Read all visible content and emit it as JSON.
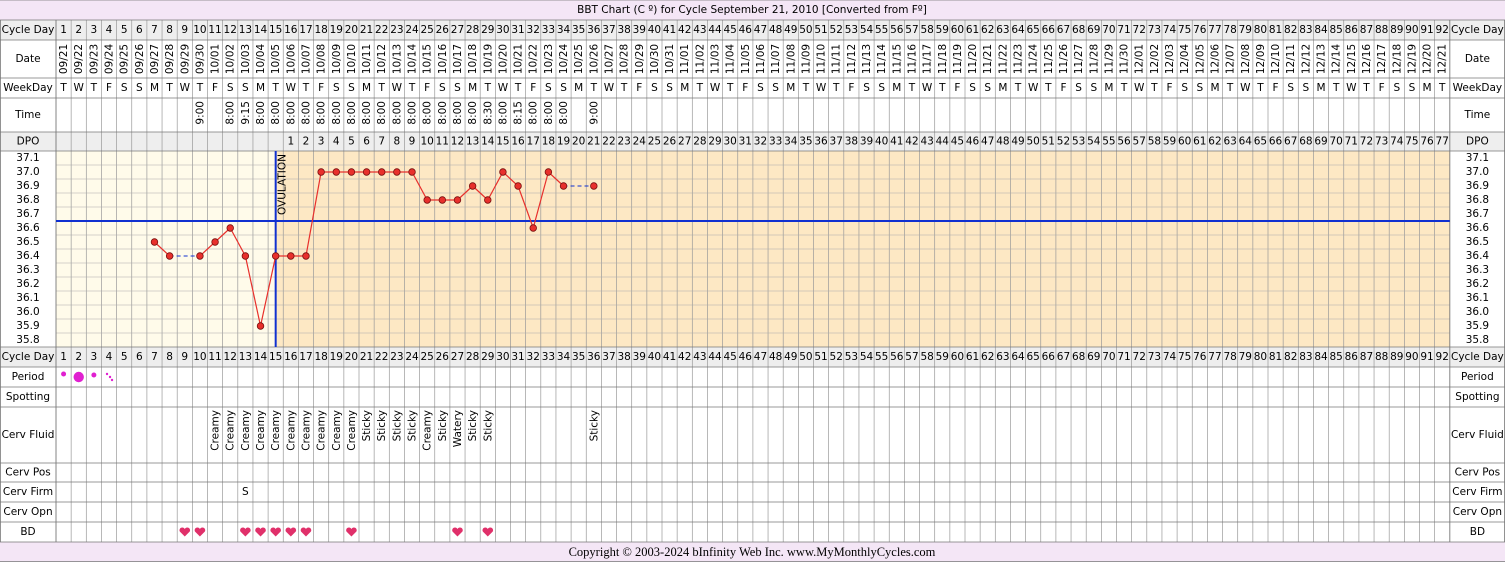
{
  "title": "BBT Chart (C º) for Cycle September 21, 2010  [Converted from Fº]",
  "footer": "Copyright © 2003-2024 bInfinity Web Inc.     www.MyMonthlyCycles.com",
  "row_labels": {
    "cycle_day": "Cycle Day",
    "date": "Date",
    "weekday": "WeekDay",
    "time": "Time",
    "dpo": "DPO",
    "period": "Period",
    "spotting": "Spotting",
    "cerv_fluid": "Cerv Fluid",
    "cerv_pos": "Cerv Pos",
    "cerv_firm": "Cerv Firm",
    "cerv_opn": "Cerv Opn",
    "bd": "BD"
  },
  "cycle_days": [
    1,
    2,
    3,
    4,
    5,
    6,
    7,
    8,
    9,
    10,
    11,
    12,
    13,
    14,
    15,
    16,
    17,
    18,
    19,
    20,
    21,
    22,
    23,
    24,
    25,
    26,
    27,
    28,
    29,
    30,
    31,
    32,
    33,
    34,
    35,
    36,
    37,
    38,
    39,
    40,
    41,
    42,
    43,
    44,
    45,
    46,
    47,
    48,
    49,
    50,
    51,
    52,
    53,
    54,
    55,
    56,
    57,
    58,
    59,
    60,
    61,
    62,
    63,
    64,
    65,
    66,
    67,
    68,
    69,
    70,
    71,
    72,
    73,
    74,
    75,
    76,
    77,
    78,
    79,
    80,
    81,
    82,
    83,
    84,
    85,
    86,
    87,
    88,
    89,
    90,
    91,
    92
  ],
  "dates": [
    "09/21",
    "09/22",
    "09/23",
    "09/24",
    "09/25",
    "09/26",
    "09/27",
    "09/28",
    "09/29",
    "09/30",
    "10/01",
    "10/02",
    "10/03",
    "10/04",
    "10/05",
    "10/06",
    "10/07",
    "10/08",
    "10/09",
    "10/10",
    "10/11",
    "10/12",
    "10/13",
    "10/14",
    "10/15",
    "10/16",
    "10/17",
    "10/18",
    "10/19",
    "10/20",
    "10/21",
    "10/22",
    "10/23",
    "10/24",
    "10/25",
    "10/26",
    "10/27",
    "10/28",
    "10/29",
    "10/30",
    "10/31",
    "11/01",
    "11/02",
    "11/03",
    "11/04",
    "11/05",
    "11/06",
    "11/07",
    "11/08",
    "11/09",
    "11/10",
    "11/11",
    "11/12",
    "11/13",
    "11/14",
    "11/15",
    "11/16",
    "11/17",
    "11/18",
    "11/19",
    "11/20",
    "11/21",
    "11/22",
    "11/23",
    "11/24",
    "11/25",
    "11/26",
    "11/27",
    "11/28",
    "11/29",
    "11/30",
    "12/01",
    "12/02",
    "12/03",
    "12/04",
    "12/05",
    "12/06",
    "12/07",
    "12/08",
    "12/09",
    "12/10",
    "12/11",
    "12/12",
    "12/13",
    "12/14",
    "12/15",
    "12/16",
    "12/17",
    "12/18",
    "12/19",
    "12/20",
    "12/21"
  ],
  "weekdays": [
    "T",
    "W",
    "T",
    "F",
    "S",
    "S",
    "M",
    "T",
    "W",
    "T",
    "F",
    "S",
    "S",
    "M",
    "T",
    "W",
    "T",
    "F",
    "S",
    "S",
    "M",
    "T",
    "W",
    "T",
    "F",
    "S",
    "S",
    "M",
    "T",
    "W",
    "T",
    "F",
    "S",
    "S",
    "M",
    "T",
    "W",
    "T",
    "F",
    "S",
    "S",
    "M",
    "T",
    "W",
    "T",
    "F",
    "S",
    "S",
    "M",
    "T",
    "W",
    "T",
    "F",
    "S",
    "S",
    "M",
    "T",
    "W",
    "T",
    "F",
    "S",
    "S",
    "M",
    "T",
    "W",
    "T",
    "F",
    "S",
    "S",
    "M",
    "T",
    "W",
    "T",
    "F",
    "S",
    "S",
    "M",
    "T",
    "W",
    "T",
    "F",
    "S",
    "S",
    "M",
    "T",
    "W",
    "T",
    "F",
    "S",
    "S",
    "M",
    "T"
  ],
  "times": [
    {
      "day": 10,
      "text": "9:00"
    },
    {
      "day": 12,
      "text": "8:00"
    },
    {
      "day": 13,
      "text": "9:15"
    },
    {
      "day": 14,
      "text": "8:00"
    },
    {
      "day": 15,
      "text": "8:00"
    },
    {
      "day": 16,
      "text": "8:00"
    },
    {
      "day": 17,
      "text": "8:00"
    },
    {
      "day": 18,
      "text": "8:00"
    },
    {
      "day": 19,
      "text": "8:00"
    },
    {
      "day": 20,
      "text": "8:00"
    },
    {
      "day": 21,
      "text": "8:00"
    },
    {
      "day": 22,
      "text": "8:00"
    },
    {
      "day": 23,
      "text": "8:00"
    },
    {
      "day": 24,
      "text": "8:00"
    },
    {
      "day": 25,
      "text": "8:00"
    },
    {
      "day": 26,
      "text": "8:00"
    },
    {
      "day": 27,
      "text": "8:00"
    },
    {
      "day": 28,
      "text": "8:00"
    },
    {
      "day": 29,
      "text": "8:30"
    },
    {
      "day": 30,
      "text": "8:00"
    },
    {
      "day": 31,
      "text": "8:15"
    },
    {
      "day": 32,
      "text": "8:00"
    },
    {
      "day": 33,
      "text": "8:00"
    },
    {
      "day": 34,
      "text": "8:00"
    },
    {
      "day": 36,
      "text": "9:00"
    }
  ],
  "dpo": {
    "start_day": 16,
    "values": [
      1,
      2,
      3,
      4,
      5,
      6,
      7,
      8,
      9,
      10,
      11,
      12,
      13,
      14,
      15,
      16,
      17,
      18,
      19,
      20,
      21,
      22,
      23,
      24,
      25,
      26,
      27,
      28,
      29,
      30,
      31,
      32,
      33,
      34,
      35,
      36,
      37,
      38,
      39,
      40,
      41,
      42,
      43,
      44,
      45,
      46,
      47,
      48,
      49,
      50,
      51,
      52,
      53,
      54,
      55,
      56,
      57,
      58,
      59,
      60,
      61,
      62,
      63,
      64,
      65,
      66,
      67,
      68,
      69,
      70,
      71,
      72,
      73,
      74,
      75,
      76,
      77
    ]
  },
  "cerv_fluid": [
    {
      "day": 11,
      "text": "Creamy"
    },
    {
      "day": 12,
      "text": "Creamy"
    },
    {
      "day": 13,
      "text": "Creamy"
    },
    {
      "day": 14,
      "text": "Creamy"
    },
    {
      "day": 15,
      "text": "Creamy"
    },
    {
      "day": 16,
      "text": "Creamy"
    },
    {
      "day": 17,
      "text": "Creamy"
    },
    {
      "day": 18,
      "text": "Creamy"
    },
    {
      "day": 19,
      "text": "Creamy"
    },
    {
      "day": 20,
      "text": "Creamy"
    },
    {
      "day": 21,
      "text": "Sticky"
    },
    {
      "day": 22,
      "text": "Sticky"
    },
    {
      "day": 23,
      "text": "Sticky"
    },
    {
      "day": 24,
      "text": "Sticky"
    },
    {
      "day": 25,
      "text": "Creamy"
    },
    {
      "day": 26,
      "text": "Sticky"
    },
    {
      "day": 27,
      "text": "Watery"
    },
    {
      "day": 28,
      "text": "Sticky"
    },
    {
      "day": 29,
      "text": "Sticky"
    },
    {
      "day": 36,
      "text": "Sticky"
    }
  ],
  "cerv_firm": [
    {
      "day": 13,
      "text": "S"
    }
  ],
  "chart_data": {
    "type": "line",
    "annotation": "OVULATION",
    "ovulation_day": 15,
    "coverline": 36.65,
    "color": "#e8302c",
    "coverline_color": "#1030d0",
    "x": [
      7,
      8,
      9,
      10,
      11,
      12,
      13,
      14,
      15,
      16,
      17,
      18,
      19,
      20,
      21,
      22,
      23,
      24,
      25,
      26,
      27,
      28,
      29,
      30,
      31,
      32,
      33,
      34,
      35,
      36
    ],
    "values": [
      36.5,
      36.4,
      null,
      36.4,
      36.5,
      36.6,
      36.4,
      35.9,
      36.4,
      36.4,
      36.4,
      37.0,
      37.0,
      37.0,
      37.0,
      37.0,
      37.0,
      37.0,
      36.8,
      36.8,
      36.8,
      36.9,
      36.8,
      37.0,
      36.9,
      36.6,
      37.0,
      36.9,
      null,
      36.9
    ],
    "ylim": [
      35.75,
      37.15
    ],
    "yticks": [
      37.1,
      {
        "value": 37.0,
        "label": "37.0"
      },
      36.9,
      36.8,
      36.7,
      36.6,
      36.5,
      36.4,
      36.3,
      36.2,
      36.1,
      {
        "value": 36.0,
        "label": "36.0"
      },
      35.9,
      35.8
    ]
  }
}
